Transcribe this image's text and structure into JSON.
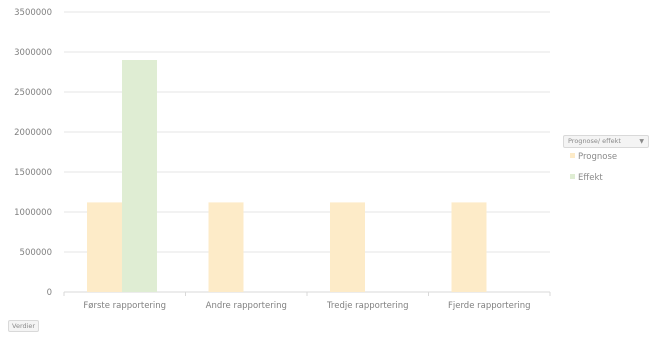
{
  "chart_data": {
    "type": "bar",
    "categories": [
      "Første rapportering",
      "Andre rapportering",
      "Tredje rapportering",
      "Fjerde rapportering"
    ],
    "series": [
      {
        "name": "Prognose",
        "values": [
          1120000,
          1120000,
          1120000,
          1120000
        ],
        "color": "#fdebc8"
      },
      {
        "name": "Effekt",
        "values": [
          2900000,
          null,
          null,
          null
        ],
        "color": "#dfedd3"
      }
    ],
    "y_ticks": [
      "0",
      "500000",
      "1000000",
      "1500000",
      "2000000",
      "2500000",
      "3000000",
      "3500000"
    ],
    "ylim": [
      0,
      3500000
    ],
    "grid": true,
    "legend_placement": "right"
  },
  "legend": {
    "filter_label": "Prognose/ effekt",
    "items": [
      {
        "label": "Prognose",
        "color": "#fdebc8"
      },
      {
        "label": "Effekt",
        "color": "#dfedd3"
      }
    ]
  },
  "values_button": {
    "label": "Verdier"
  }
}
